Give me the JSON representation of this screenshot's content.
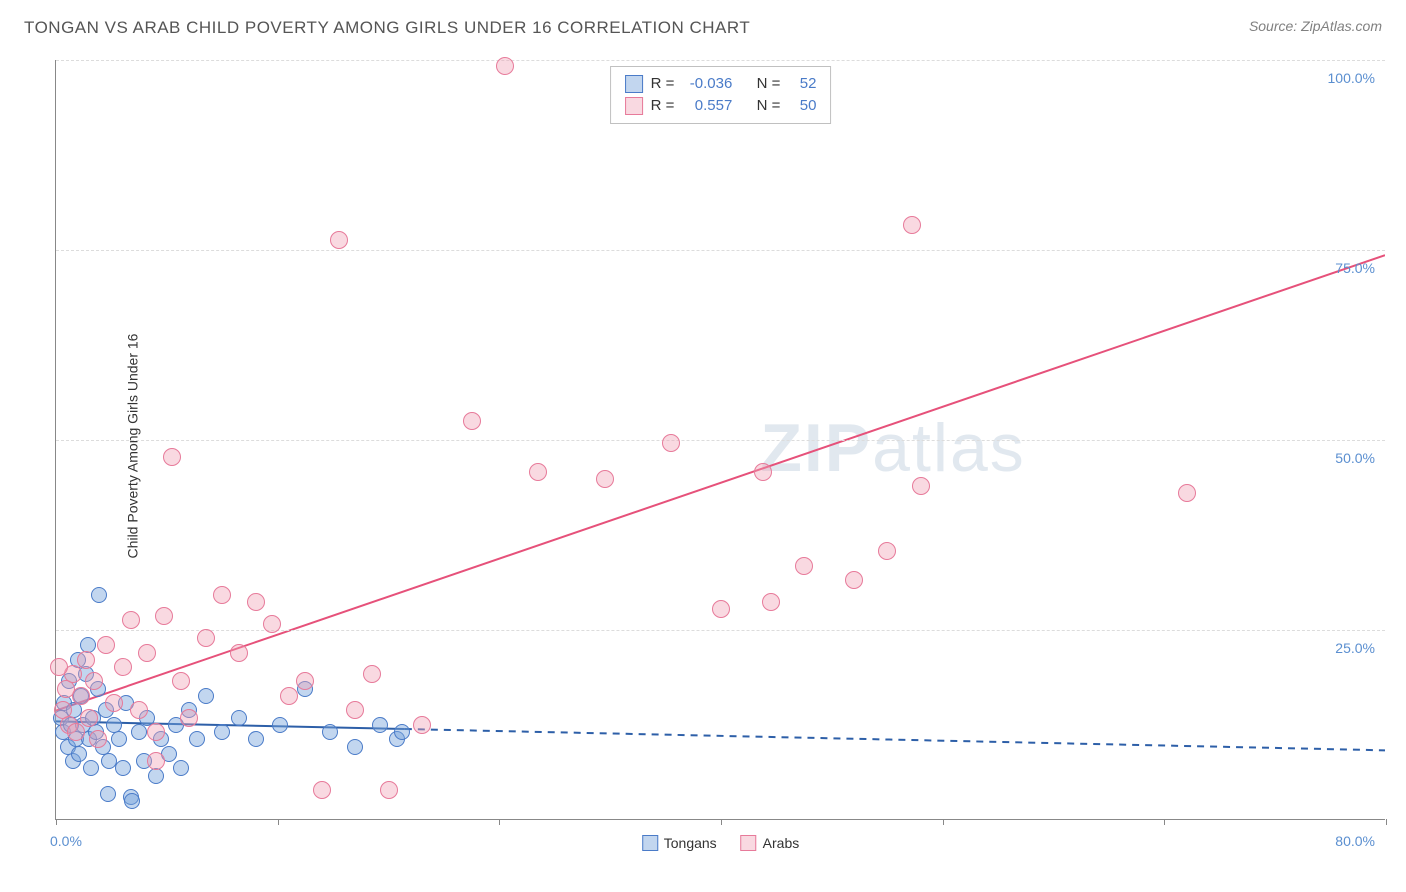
{
  "title": "TONGAN VS ARAB CHILD POVERTY AMONG GIRLS UNDER 16 CORRELATION CHART",
  "source": "Source: ZipAtlas.com",
  "ylabel": "Child Poverty Among Girls Under 16",
  "watermark_bold": "ZIP",
  "watermark_light": "atlas",
  "chart": {
    "type": "scatter",
    "xlim": [
      0,
      80
    ],
    "ylim": [
      0,
      105
    ],
    "x_tick_positions": [
      0,
      13.33,
      26.67,
      40,
      53.33,
      66.67,
      80
    ],
    "x_axis_labels": {
      "left": "0.0%",
      "right": "80.0%"
    },
    "y_gridlines": [
      26.25,
      52.5,
      78.75,
      105
    ],
    "y_tick_labels": [
      "25.0%",
      "50.0%",
      "75.0%",
      "100.0%"
    ],
    "background_color": "#ffffff",
    "grid_color": "#dcdcdc",
    "axis_color": "#888888",
    "tick_label_color": "#5b8fd0"
  },
  "series": [
    {
      "name": "Tongans",
      "color_fill": "rgba(120,165,220,0.45)",
      "color_stroke": "#4a7bc8",
      "marker_radius": 8,
      "r_value": "-0.036",
      "n_value": "52",
      "trend": {
        "y_at_x0": 13.5,
        "y_at_xmax": 9.5,
        "solid_until_x": 21,
        "stroke": "#2d5fa8",
        "width": 2
      },
      "points": [
        [
          0.3,
          14
        ],
        [
          0.4,
          12
        ],
        [
          0.5,
          16
        ],
        [
          0.7,
          10
        ],
        [
          0.8,
          19
        ],
        [
          0.9,
          13
        ],
        [
          1.0,
          8
        ],
        [
          1.1,
          15
        ],
        [
          1.2,
          11
        ],
        [
          1.3,
          22
        ],
        [
          1.4,
          9
        ],
        [
          1.5,
          17
        ],
        [
          1.6,
          13
        ],
        [
          1.8,
          20
        ],
        [
          1.9,
          24
        ],
        [
          2.0,
          11
        ],
        [
          2.1,
          7
        ],
        [
          2.2,
          14
        ],
        [
          2.4,
          12
        ],
        [
          2.5,
          18
        ],
        [
          2.6,
          31
        ],
        [
          2.8,
          10
        ],
        [
          3.0,
          15
        ],
        [
          3.1,
          3.5
        ],
        [
          3.2,
          8
        ],
        [
          3.5,
          13
        ],
        [
          3.8,
          11
        ],
        [
          4.0,
          7
        ],
        [
          4.2,
          16
        ],
        [
          4.5,
          3
        ],
        [
          4.6,
          2.5
        ],
        [
          5.0,
          12
        ],
        [
          5.3,
          8
        ],
        [
          5.5,
          14
        ],
        [
          6.0,
          6
        ],
        [
          6.3,
          11
        ],
        [
          6.8,
          9
        ],
        [
          7.2,
          13
        ],
        [
          7.5,
          7
        ],
        [
          8.0,
          15
        ],
        [
          8.5,
          11
        ],
        [
          9.0,
          17
        ],
        [
          10.0,
          12
        ],
        [
          11.0,
          14
        ],
        [
          12.0,
          11
        ],
        [
          13.5,
          13
        ],
        [
          15.0,
          18
        ],
        [
          16.5,
          12
        ],
        [
          18.0,
          10
        ],
        [
          19.5,
          13
        ],
        [
          20.5,
          11
        ],
        [
          20.8,
          12
        ]
      ]
    },
    {
      "name": "Arabs",
      "color_fill": "rgba(240,160,180,0.40)",
      "color_stroke": "#e77a9a",
      "marker_radius": 9,
      "r_value": "0.557",
      "n_value": "50",
      "trend": {
        "y_at_x0": 15,
        "y_at_xmax": 78,
        "solid_until_x": 80,
        "stroke": "#e6517a",
        "width": 2
      },
      "points": [
        [
          0.4,
          15
        ],
        [
          0.6,
          18
        ],
        [
          0.8,
          13
        ],
        [
          1.0,
          20
        ],
        [
          1.2,
          12
        ],
        [
          1.5,
          17
        ],
        [
          1.8,
          22
        ],
        [
          2.0,
          14
        ],
        [
          2.3,
          19
        ],
        [
          2.5,
          11
        ],
        [
          3.0,
          24
        ],
        [
          3.5,
          16
        ],
        [
          4.0,
          21
        ],
        [
          4.5,
          27.5
        ],
        [
          5.0,
          15
        ],
        [
          5.5,
          23
        ],
        [
          6.0,
          12
        ],
        [
          6.5,
          28
        ],
        [
          7.0,
          50
        ],
        [
          7.5,
          19
        ],
        [
          8.0,
          14
        ],
        [
          9.0,
          25
        ],
        [
          10.0,
          31
        ],
        [
          11.0,
          23
        ],
        [
          12.0,
          30
        ],
        [
          13.0,
          27
        ],
        [
          14.0,
          17
        ],
        [
          15.0,
          19
        ],
        [
          16.0,
          4
        ],
        [
          17.0,
          80
        ],
        [
          18.0,
          15
        ],
        [
          19.0,
          20
        ],
        [
          20.0,
          4
        ],
        [
          22.0,
          13
        ],
        [
          25.0,
          55
        ],
        [
          27.0,
          104
        ],
        [
          29.0,
          48
        ],
        [
          33.0,
          47
        ],
        [
          37.0,
          52
        ],
        [
          40.0,
          29
        ],
        [
          42.5,
          48
        ],
        [
          43.0,
          30
        ],
        [
          45.0,
          35
        ],
        [
          48.0,
          33
        ],
        [
          51.5,
          82
        ],
        [
          52.0,
          46
        ],
        [
          68.0,
          45
        ],
        [
          50.0,
          37
        ],
        [
          6.0,
          8
        ],
        [
          0.2,
          21
        ]
      ]
    }
  ],
  "legend_bottom": [
    {
      "label": "Tongans",
      "fill": "rgba(120,165,220,0.45)",
      "stroke": "#4a7bc8"
    },
    {
      "label": "Arabs",
      "fill": "rgba(240,160,180,0.40)",
      "stroke": "#e77a9a"
    }
  ],
  "legend_top_labels": {
    "r": "R =",
    "n": "N ="
  }
}
